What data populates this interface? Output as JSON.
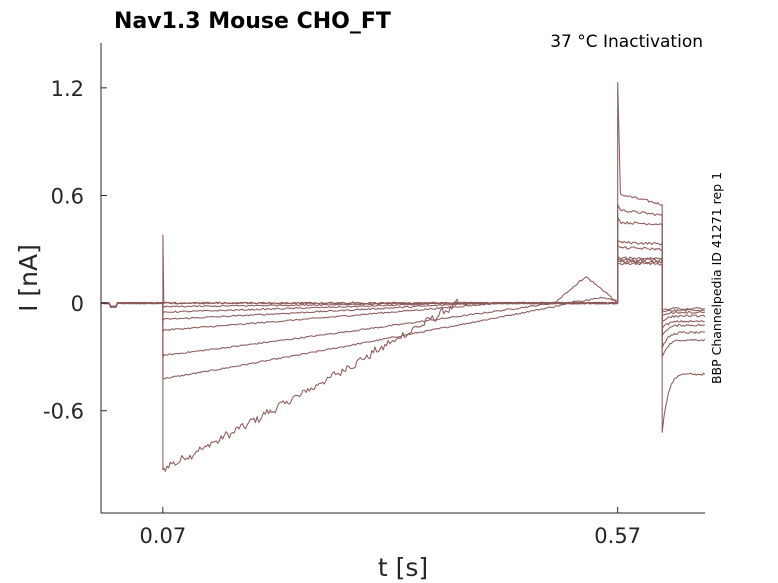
{
  "chart_data": {
    "type": "line",
    "title": "Nav1.3  Mouse  CHO_FT",
    "subtitle": "37 °C  Inactivation",
    "side_label": "BBP Channelpedia ID 41271 rep 1",
    "xlabel": "t [s]",
    "ylabel": "I [nA]",
    "xlim": [
      0.002,
      0.666
    ],
    "ylim": [
      -1.17,
      1.45
    ],
    "xticks": [
      0.07,
      0.57
    ],
    "xtick_labels": [
      "0.07",
      "0.57"
    ],
    "yticks": [
      -0.6,
      0,
      0.6,
      1.2
    ],
    "ytick_labels": [
      "-0.6",
      "0",
      "0.6",
      "1.2"
    ],
    "line_color": "#8d5a5a",
    "grid": false,
    "stimulus_on": 0.07,
    "stimulus_off": 0.57,
    "series": [
      {
        "peak": -0.93,
        "sustained": -0.92,
        "x_cross": 0.395,
        "late_max": 0.0,
        "late_at": 0.55,
        "post_peak": 1.23,
        "post_step": 0.61,
        "post_end": 0.55,
        "tail_dip": -0.72,
        "tail_end": -0.38
      },
      {
        "peak": -0.42,
        "sustained": -0.42,
        "x_cross": 0.52,
        "late_max": 0.0,
        "late_at": 0.55,
        "post_peak": 0.55,
        "post_step": 0.52,
        "post_end": 0.49,
        "tail_dip": -0.3,
        "tail_end": -0.2
      },
      {
        "peak": -0.31,
        "sustained": -0.29,
        "x_cross": 0.5,
        "late_max": 0.0,
        "late_at": 0.55,
        "post_peak": 0.48,
        "post_step": 0.45,
        "post_end": 0.44,
        "tail_dip": -0.25,
        "tail_end": -0.16
      },
      {
        "peak": -0.16,
        "sustained": -0.15,
        "x_cross": 0.44,
        "late_max": 0.0,
        "late_at": 0.55,
        "post_peak": 0.35,
        "post_step": 0.34,
        "post_end": 0.33,
        "tail_dip": -0.18,
        "tail_end": -0.12
      },
      {
        "peak": -0.1,
        "sustained": -0.09,
        "x_cross": 0.42,
        "late_max": 0.0,
        "late_at": 0.55,
        "post_peak": 0.32,
        "post_step": 0.31,
        "post_end": 0.3,
        "tail_dip": -0.14,
        "tail_end": -0.1
      },
      {
        "peak": -0.06,
        "sustained": -0.05,
        "x_cross": 0.4,
        "late_max": 0.0,
        "late_at": 0.55,
        "post_peak": 0.26,
        "post_step": 0.25,
        "post_end": 0.25,
        "tail_dip": -0.1,
        "tail_end": -0.07
      },
      {
        "peak": -0.03,
        "sustained": -0.02,
        "x_cross": 0.38,
        "late_max": 0.0,
        "late_at": 0.55,
        "post_peak": 0.24,
        "post_step": 0.23,
        "post_end": 0.23,
        "tail_dip": -0.07,
        "tail_end": -0.05
      },
      {
        "peak": 0.38,
        "sustained": 0.0,
        "x_cross": 0.07,
        "late_max": 0.03,
        "late_at": 0.55,
        "post_peak": 0.22,
        "post_step": 0.22,
        "post_end": 0.22,
        "tail_dip": -0.05,
        "tail_end": -0.04
      },
      {
        "peak": 0.0,
        "sustained": 0.0,
        "x_cross": 0.07,
        "late_max": 0.15,
        "late_at": 0.535,
        "post_peak": 0.25,
        "post_step": 0.24,
        "post_end": 0.24,
        "tail_dip": -0.04,
        "tail_end": -0.03
      }
    ]
  }
}
